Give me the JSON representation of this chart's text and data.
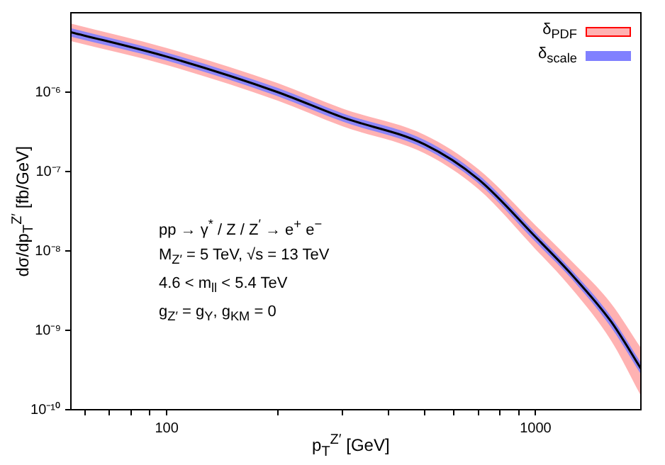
{
  "chart_data": {
    "type": "line",
    "xlabel": "p$_{T}$$^{Z′}$ [GeV]",
    "ylabel": "dσ/dp$_{T}$$^{Z′}$ [fb/GeV]",
    "x": [
      55,
      100,
      200,
      300,
      500,
      700,
      1000,
      1250,
      1600,
      1930
    ],
    "series": [
      {
        "name": "δ$_{PDF}$",
        "color": "#ff0000",
        "values": [
          null,
          null,
          null,
          null,
          null,
          null,
          null,
          null,
          null,
          null
        ],
        "lower": [
          4.4e-06,
          2.2e-06,
          7.8e-07,
          3.7e-07,
          1.7e-07,
          6e-08,
          1.05e-08,
          3.4e-09,
          7.5e-10,
          1.5e-10
        ],
        "upper": [
          7.3e-06,
          3.6e-06,
          1.3e-06,
          6.2e-07,
          2.9e-07,
          1.07e-07,
          2.1e-08,
          7.5e-09,
          2.2e-09,
          6e-10
        ]
      },
      {
        "name": "δ$_{scale}$",
        "color": "#8080ff",
        "values": [
          null,
          null,
          null,
          null,
          null,
          null,
          null,
          null,
          null,
          null
        ],
        "lower": [
          5e-06,
          2.5e-06,
          8.9e-07,
          4.25e-07,
          1.95e-07,
          7.1e-08,
          1.3e-08,
          4.5e-09,
          1.1e-09,
          2.8e-10
        ],
        "upper": [
          6.4e-06,
          3.15e-06,
          1.13e-06,
          5.4e-07,
          2.5e-07,
          9.1e-08,
          1.7e-08,
          5.8e-09,
          1.5e-09,
          3.9e-10
        ]
      },
      {
        "color": "#000000",
        "values": [
          5.7e-06,
          2.8e-06,
          1e-06,
          4.8e-07,
          2.2e-07,
          8e-08,
          1.5e-08,
          5.1e-09,
          1.3e-09,
          3.3e-10
        ]
      }
    ],
    "log": "xy",
    "xlim": [
      55,
      1930
    ],
    "ylim": [
      1e-10,
      1e-05
    ],
    "xticks": [
      {
        "value": 60,
        "label": null
      },
      {
        "value": 70,
        "label": null
      },
      {
        "value": 80,
        "label": null
      },
      {
        "value": 90,
        "label": null
      },
      100,
      {
        "value": 200,
        "label": null
      },
      {
        "value": 300,
        "label": null
      },
      {
        "value": 400,
        "label": null
      },
      {
        "value": 500,
        "label": null
      },
      {
        "value": 600,
        "label": null
      },
      {
        "value": 700,
        "label": null
      },
      {
        "value": 800,
        "label": null
      },
      {
        "value": 900,
        "label": null
      },
      1000
    ],
    "yticks": [
      {
        "value": 1e-10,
        "label": "10⁻¹⁰"
      },
      {
        "value": 1e-09,
        "label": "10⁻⁹"
      },
      {
        "value": 1e-08,
        "label": "10⁻⁸"
      },
      {
        "value": 1e-07,
        "label": "10⁻⁷"
      },
      {
        "value": 1e-06,
        "label": "10⁻⁶"
      }
    ],
    "grid": false,
    "legend": "top right",
    "marker": "none",
    "line_style": "solid",
    "annotations": [
      "pp → γ$^{*}$ / Z / Z$^{′}$ → e$^{+}$ e$^{−}$",
      "M$_{Z′}$ = 5 TeV,  √s = 13 TeV",
      "4.6 < m$_{ll}$ < 5.4 TeV",
      "g$_{Z′}$ = g$_{Y}$,  g$_{KM}$ = 0"
    ]
  }
}
